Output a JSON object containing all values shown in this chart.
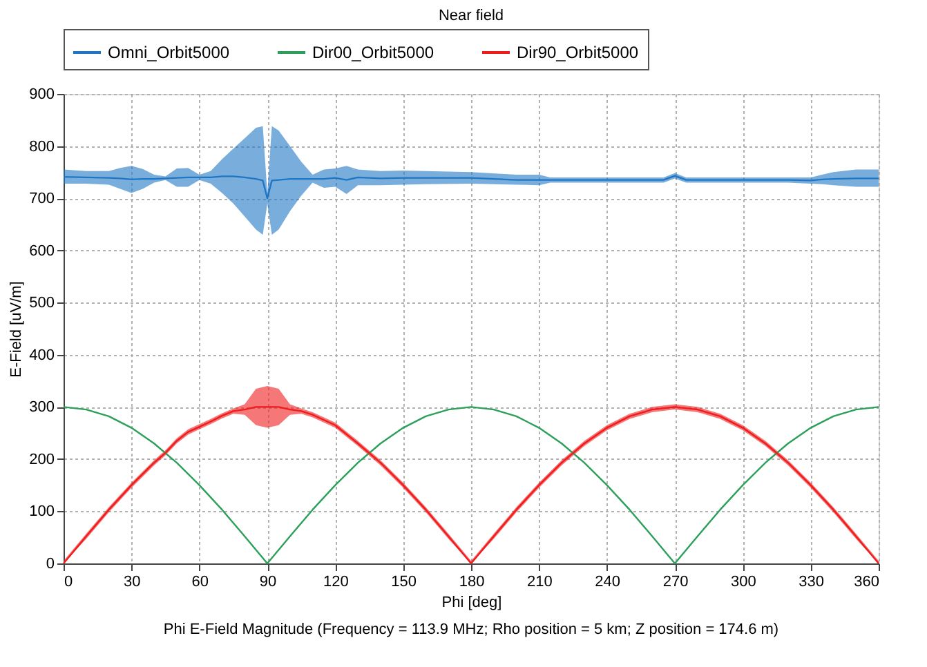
{
  "chart_data": {
    "type": "line",
    "title": "Near field",
    "xlabel": "Phi [deg]",
    "ylabel": "E-Field [uV/m]",
    "annotations": [
      "Phi E-Field Magnitude (Frequency = 113.9 MHz; Rho position = 5 km; Z position = 174.6 m)"
    ],
    "xlim": [
      0,
      360
    ],
    "xticks": [
      0,
      30,
      60,
      90,
      120,
      150,
      180,
      210,
      240,
      270,
      300,
      330,
      360
    ],
    "ylim": [
      0,
      900
    ],
    "yticks": [
      0,
      100,
      200,
      300,
      400,
      500,
      600,
      700,
      800,
      900
    ],
    "grid": true,
    "legend": "top",
    "line_style": "solid",
    "marker": "none",
    "series": [
      {
        "name": "Omni_Orbit5000",
        "color": "#1f77c4",
        "x": [
          0,
          10,
          20,
          25,
          30,
          35,
          40,
          45,
          50,
          55,
          60,
          65,
          70,
          75,
          80,
          85,
          88,
          90,
          92,
          95,
          100,
          105,
          110,
          115,
          120,
          125,
          130,
          140,
          150,
          160,
          180,
          200,
          210,
          215,
          220,
          240,
          260,
          265,
          270,
          275,
          280,
          300,
          320,
          330,
          335,
          340,
          350,
          360
        ],
        "values": [
          741,
          740,
          739,
          738,
          736,
          737,
          737,
          738,
          739,
          740,
          740,
          740,
          742,
          742,
          740,
          737,
          734,
          700,
          734,
          735,
          737,
          737,
          737,
          737,
          739,
          735,
          740,
          738,
          739,
          739,
          739,
          735,
          735,
          735,
          735,
          735,
          735,
          735,
          743,
          735,
          735,
          735,
          735,
          734,
          736,
          737,
          738,
          738
        ],
        "lower": [
          728,
          728,
          726,
          718,
          710,
          718,
          730,
          735,
          722,
          722,
          735,
          728,
          710,
          690,
          665,
          640,
          630,
          690,
          630,
          640,
          675,
          705,
          730,
          720,
          722,
          708,
          725,
          725,
          726,
          727,
          728,
          726,
          725,
          730,
          730,
          730,
          730,
          730,
          738,
          730,
          730,
          730,
          730,
          728,
          727,
          725,
          722,
          722
        ],
        "upper": [
          755,
          752,
          752,
          758,
          762,
          756,
          745,
          742,
          757,
          758,
          745,
          752,
          775,
          795,
          815,
          835,
          838,
          710,
          838,
          830,
          800,
          770,
          745,
          755,
          757,
          762,
          755,
          752,
          753,
          752,
          750,
          745,
          745,
          740,
          740,
          740,
          740,
          740,
          748,
          740,
          740,
          740,
          740,
          740,
          745,
          750,
          755,
          755
        ]
      },
      {
        "name": "Dir00_Orbit5000",
        "color": "#2ca05a",
        "x": [
          0,
          10,
          20,
          30,
          40,
          50,
          60,
          70,
          80,
          90,
          100,
          110,
          120,
          130,
          140,
          150,
          160,
          170,
          180,
          190,
          200,
          210,
          220,
          230,
          240,
          250,
          260,
          270,
          280,
          290,
          300,
          310,
          320,
          330,
          340,
          350,
          360
        ],
        "values": [
          300,
          295,
          282,
          260,
          230,
          193,
          150,
          103,
          52,
          0,
          52,
          103,
          150,
          193,
          230,
          260,
          282,
          295,
          300,
          295,
          282,
          260,
          230,
          193,
          150,
          103,
          52,
          0,
          52,
          103,
          150,
          193,
          230,
          260,
          282,
          295,
          300
        ]
      },
      {
        "name": "Dir90_Orbit5000",
        "color": "#ee1c1c",
        "x": [
          0,
          10,
          20,
          30,
          40,
          45,
          50,
          55,
          60,
          65,
          70,
          75,
          80,
          85,
          90,
          95,
          100,
          105,
          110,
          115,
          120,
          130,
          140,
          150,
          160,
          170,
          180,
          190,
          200,
          210,
          220,
          230,
          240,
          250,
          260,
          270,
          280,
          290,
          300,
          310,
          320,
          330,
          340,
          350,
          360
        ],
        "values": [
          0,
          52,
          103,
          150,
          193,
          212,
          235,
          252,
          262,
          272,
          283,
          292,
          295,
          300,
          300,
          300,
          295,
          292,
          285,
          275,
          265,
          230,
          193,
          150,
          103,
          52,
          0,
          52,
          103,
          150,
          193,
          230,
          260,
          282,
          295,
          300,
          295,
          282,
          260,
          230,
          193,
          150,
          103,
          52,
          0
        ],
        "lower": [
          0,
          47,
          98,
          145,
          188,
          207,
          230,
          247,
          257,
          267,
          278,
          287,
          285,
          265,
          260,
          265,
          285,
          287,
          280,
          270,
          260,
          225,
          188,
          145,
          98,
          47,
          0,
          47,
          98,
          145,
          188,
          225,
          255,
          277,
          290,
          295,
          290,
          277,
          255,
          225,
          188,
          145,
          98,
          47,
          0
        ],
        "upper": [
          5,
          57,
          108,
          155,
          198,
          217,
          240,
          257,
          267,
          277,
          288,
          297,
          305,
          335,
          340,
          335,
          305,
          297,
          290,
          280,
          270,
          235,
          198,
          155,
          108,
          57,
          5,
          57,
          108,
          155,
          198,
          235,
          265,
          287,
          300,
          305,
          300,
          287,
          265,
          235,
          198,
          155,
          108,
          57,
          5
        ]
      }
    ]
  }
}
